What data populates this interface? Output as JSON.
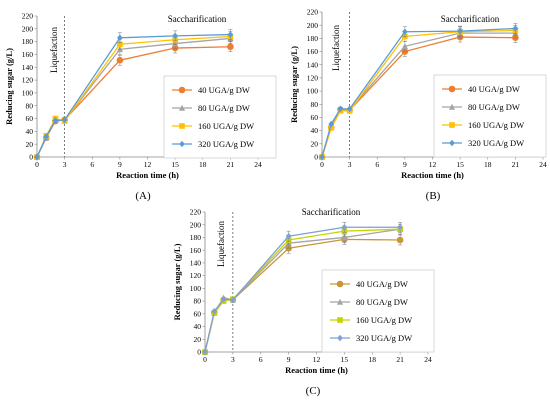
{
  "chart_data": [
    {
      "type": "line",
      "panel_label": "(A)",
      "xlabel": "Reaction time (h)",
      "ylabel": "Reducing sugar (g/L)",
      "xlim": [
        0,
        24
      ],
      "ylim": [
        0,
        220
      ],
      "x_ticks": [
        0,
        3,
        6,
        9,
        12,
        15,
        18,
        21,
        24
      ],
      "y_ticks": [
        0,
        20,
        40,
        60,
        80,
        100,
        120,
        140,
        160,
        180,
        200,
        220
      ],
      "annotations": [
        "Liquefaction",
        "Saccharification"
      ],
      "divider_x": 3,
      "legend_position": "right-middle",
      "grid": false,
      "x": [
        0,
        1,
        2,
        3,
        9,
        15,
        21
      ],
      "series": [
        {
          "name": "40 UGA/g DW",
          "color": "#ED7D31",
          "marker": "circle",
          "values": [
            0,
            30,
            56,
            58,
            151,
            170,
            172
          ]
        },
        {
          "name": "80 UGA/g DW",
          "color": "#A5A5A5",
          "marker": "triangle",
          "values": [
            0,
            30,
            58,
            57,
            168,
            177,
            185
          ]
        },
        {
          "name": "160 UGA/g DW",
          "color": "#FFC000",
          "marker": "square",
          "values": [
            0,
            33,
            60,
            56,
            176,
            183,
            188
          ]
        },
        {
          "name": "320 UGA/g DW",
          "color": "#5B9BD5",
          "marker": "diamond",
          "values": [
            0,
            32,
            57,
            58,
            186,
            189,
            191
          ]
        }
      ]
    },
    {
      "type": "line",
      "panel_label": "(B)",
      "xlabel": "Reaction time (h)",
      "ylabel": "Reducing sugar (g/L)",
      "xlim": [
        0,
        24
      ],
      "ylim": [
        0,
        220
      ],
      "x_ticks": [
        0,
        3,
        6,
        9,
        12,
        15,
        18,
        21,
        24
      ],
      "y_ticks": [
        0,
        20,
        40,
        60,
        80,
        100,
        120,
        140,
        160,
        180,
        200,
        220
      ],
      "annotations": [
        "Liquefaction",
        "Saccharification"
      ],
      "divider_x": 3,
      "legend_position": "right-middle",
      "grid": false,
      "x": [
        0,
        1,
        2,
        3,
        9,
        15,
        21
      ],
      "series": [
        {
          "name": "40 UGA/g DW",
          "color": "#ED7D31",
          "marker": "circle",
          "values": [
            0,
            45,
            72,
            71,
            160,
            182,
            181
          ]
        },
        {
          "name": "80 UGA/g DW",
          "color": "#A5A5A5",
          "marker": "triangle",
          "values": [
            0,
            46,
            71,
            72,
            168,
            188,
            188
          ]
        },
        {
          "name": "160 UGA/g DW",
          "color": "#FFC000",
          "marker": "square",
          "values": [
            0,
            44,
            70,
            70,
            183,
            190,
            192
          ]
        },
        {
          "name": "320 UGA/g DW",
          "color": "#5B9BD5",
          "marker": "diamond",
          "values": [
            0,
            50,
            73,
            73,
            190,
            191,
            195
          ]
        }
      ]
    },
    {
      "type": "line",
      "panel_label": "(C)",
      "xlabel": "Reaction time (h)",
      "ylabel": "Reducing sugar (g/L)",
      "xlim": [
        0,
        24
      ],
      "ylim": [
        0,
        220
      ],
      "x_ticks": [
        0,
        3,
        6,
        9,
        12,
        15,
        18,
        21,
        24
      ],
      "y_ticks": [
        0,
        20,
        40,
        60,
        80,
        100,
        120,
        140,
        160,
        180,
        200,
        220
      ],
      "annotations": [
        "Liquefaction",
        "Saccharification"
      ],
      "divider_x": 3,
      "legend_position": "right-middle",
      "grid": false,
      "x": [
        0,
        1,
        2,
        3,
        9,
        15,
        21
      ],
      "series": [
        {
          "name": "40 UGA/g DW",
          "color": "#C9963A",
          "marker": "circle",
          "values": [
            0,
            62,
            82,
            82,
            163,
            177,
            176
          ]
        },
        {
          "name": "80 UGA/g DW",
          "color": "#A5A5A5",
          "marker": "triangle",
          "values": [
            0,
            62,
            85,
            82,
            171,
            180,
            193
          ]
        },
        {
          "name": "160 UGA/g DW",
          "color": "#C8D400",
          "marker": "square",
          "values": [
            0,
            61,
            80,
            83,
            176,
            190,
            193
          ]
        },
        {
          "name": "320 UGA/g DW",
          "color": "#7F9FD8",
          "marker": "diamond",
          "values": [
            0,
            64,
            83,
            82,
            182,
            196,
            196
          ]
        }
      ]
    }
  ]
}
